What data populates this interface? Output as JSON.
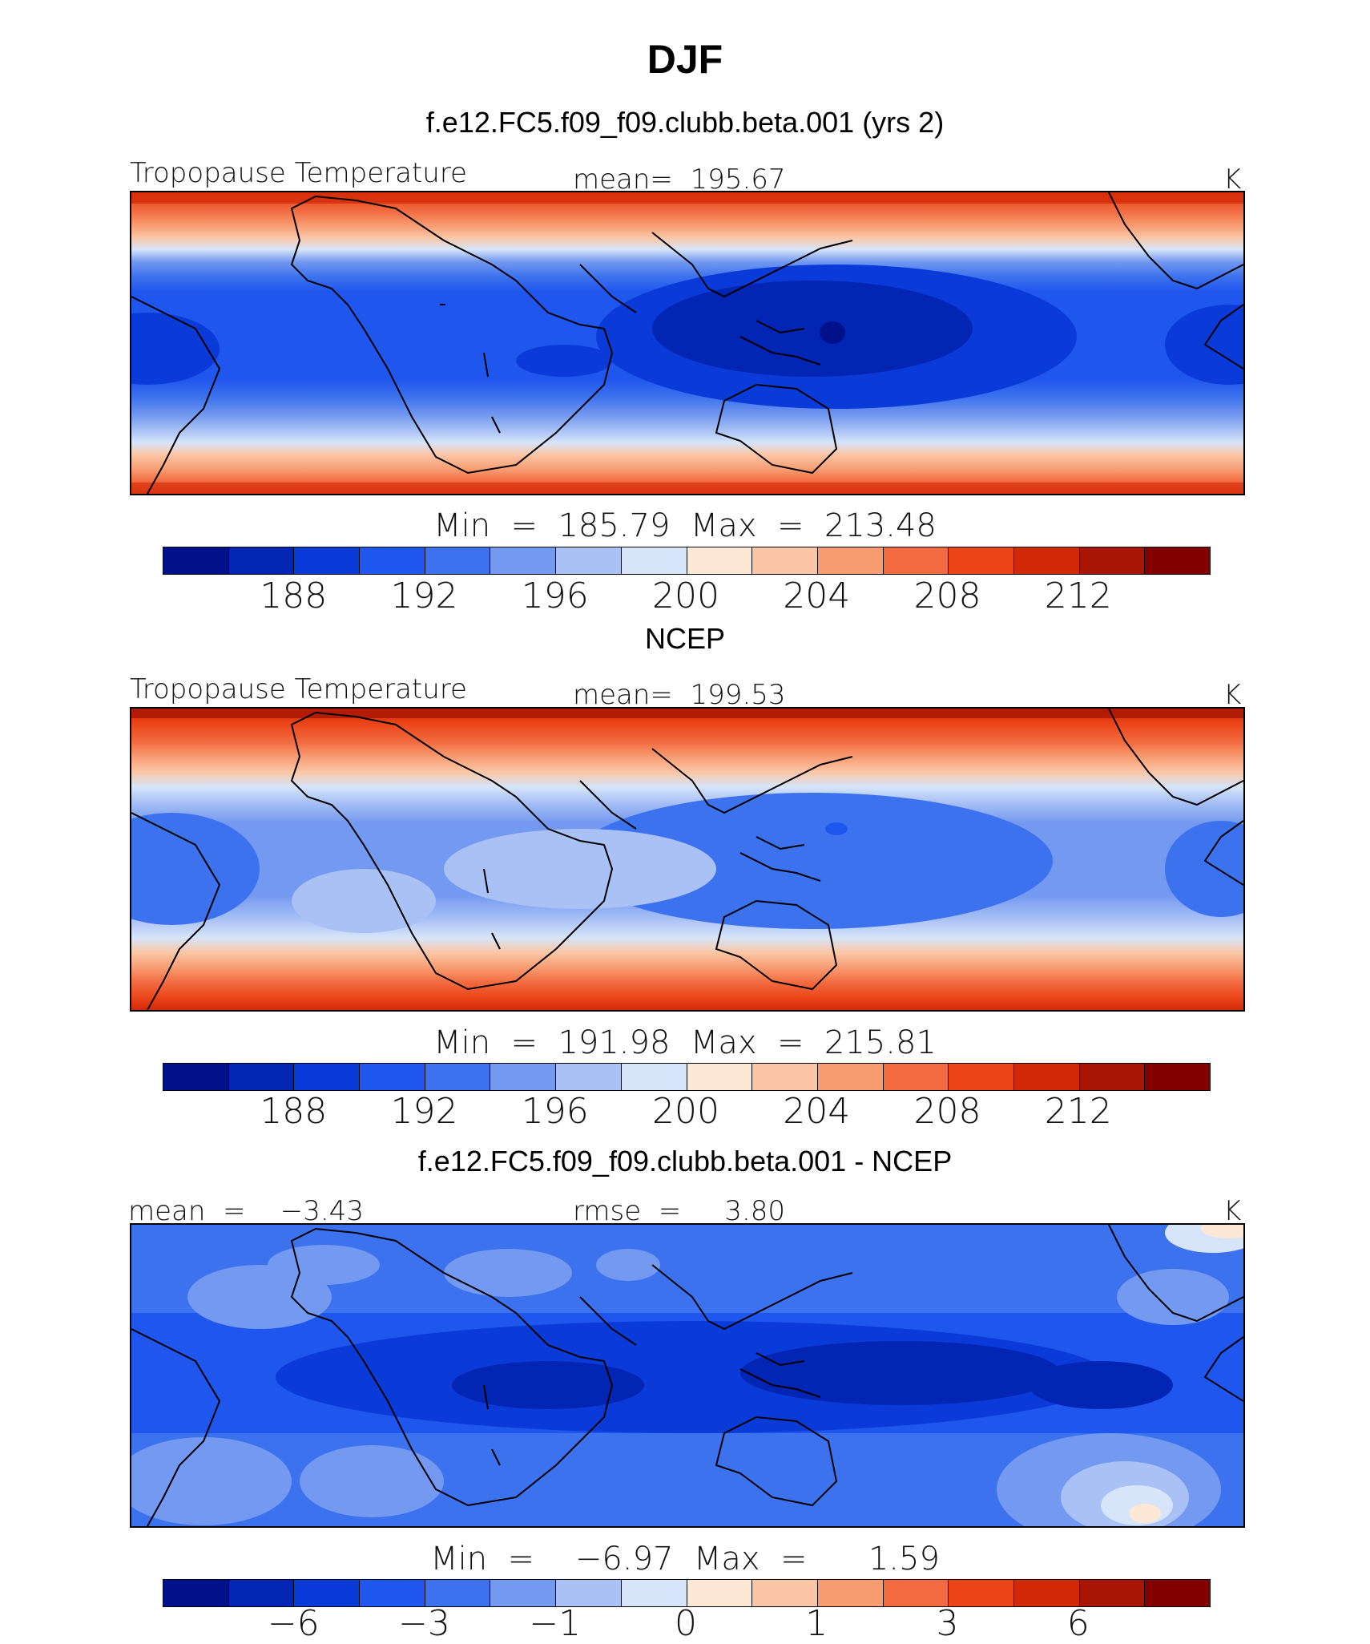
{
  "figure": {
    "title": "DJF"
  },
  "panels": [
    {
      "subtitle": "f.e12.FC5.f09_f09.clubb.beta.001 (yrs 2)",
      "left_label": "Tropopause Temperature",
      "center_label": "mean=  195.67",
      "right_label": "K",
      "minmax": "Min  =  185.79  Max  =  213.48",
      "map_kind": "model"
    },
    {
      "subtitle": "NCEP",
      "left_label": "Tropopause Temperature",
      "center_label": "mean=  199.53",
      "right_label": "K",
      "minmax": "Min  =  191.98  Max  =  215.81",
      "map_kind": "obs"
    },
    {
      "subtitle": "f.e12.FC5.f09_f09.clubb.beta.001 - NCEP",
      "left_label": "mean  =    −3.43",
      "center_label": "rmse  =     3.80",
      "right_label": "K",
      "minmax": "Min  =    −6.97  Max  =      1.59",
      "map_kind": "diff"
    }
  ],
  "colorbars": {
    "colors": [
      "#00118a",
      "#0325b4",
      "#0a3bd8",
      "#1f56ee",
      "#3d72ee",
      "#7399f0",
      "#a9c1f5",
      "#d6e5fa",
      "#fde8d6",
      "#fbc6a6",
      "#f89c72",
      "#f26a3f",
      "#eb4519",
      "#d22a08",
      "#a81504",
      "#820000"
    ],
    "temp_ticks": [
      "188",
      "192",
      "196",
      "200",
      "204",
      "208",
      "212"
    ],
    "temp_tick_boundaries": [
      2,
      4,
      6,
      8,
      10,
      12,
      14
    ],
    "diff_ticks": [
      "−6",
      "−3",
      "−1",
      "0",
      "1",
      "3",
      "6"
    ],
    "diff_tick_boundaries": [
      2,
      4,
      6,
      8,
      10,
      12,
      14
    ]
  }
}
